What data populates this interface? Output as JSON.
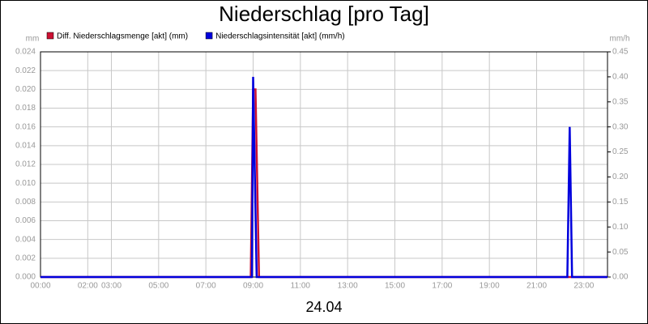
{
  "chart_data": {
    "type": "line",
    "title": "Niederschlag [pro Tag]",
    "ylabel": "mm",
    "y2label": "mm/h",
    "xlabel": "24.04",
    "xlim": [
      0,
      24
    ],
    "xticks": [
      {
        "value": 0,
        "label": "00:00"
      },
      {
        "value": 2,
        "label": "02:00"
      },
      {
        "value": 3,
        "label": "03:00"
      },
      {
        "value": 5,
        "label": "05:00"
      },
      {
        "value": 7,
        "label": "07:00"
      },
      {
        "value": 9,
        "label": "09:00"
      },
      {
        "value": 11,
        "label": "11:00"
      },
      {
        "value": 13,
        "label": "13:00"
      },
      {
        "value": 15,
        "label": "15:00"
      },
      {
        "value": 17,
        "label": "17:00"
      },
      {
        "value": 19,
        "label": "19:00"
      },
      {
        "value": 21,
        "label": "21:00"
      },
      {
        "value": 23,
        "label": "23:00"
      }
    ],
    "ylim": [
      0,
      0.024
    ],
    "yticks": [
      {
        "value": 0,
        "label": "0.000"
      },
      {
        "value": 0.002,
        "label": "0.002"
      },
      {
        "value": 0.004,
        "label": "0.004"
      },
      {
        "value": 0.006,
        "label": "0.006"
      },
      {
        "value": 0.008,
        "label": "0.008"
      },
      {
        "value": 0.01,
        "label": "0.010"
      },
      {
        "value": 0.012,
        "label": "0.012"
      },
      {
        "value": 0.014,
        "label": "0.014"
      },
      {
        "value": 0.016,
        "label": "0.016"
      },
      {
        "value": 0.018,
        "label": "0.018"
      },
      {
        "value": 0.02,
        "label": "0.020"
      },
      {
        "value": 0.022,
        "label": "0.022"
      },
      {
        "value": 0.024,
        "label": "0.024"
      }
    ],
    "y2lim": [
      0,
      0.45
    ],
    "y2ticks": [
      {
        "value": 0,
        "label": "0.00"
      },
      0.05,
      {
        "value": 0.1,
        "label": "0.10"
      },
      0.15,
      {
        "value": 0.2,
        "label": "0.20"
      },
      0.25,
      {
        "value": 0.3,
        "label": "0.30"
      },
      0.35,
      {
        "value": 0.4,
        "label": "0.40"
      },
      0.45
    ],
    "grid": true,
    "series": [
      {
        "name": "Diff. Niederschlagsmenge [akt] (mm)",
        "color": "#cc1133",
        "axis": "y",
        "x": [
          0,
          8.9,
          9.0,
          9.1,
          9.25,
          24
        ],
        "values": [
          0,
          0,
          0.02,
          0.02,
          0,
          0
        ]
      },
      {
        "name": "Niederschlagsintensität [akt] (mm/h)",
        "color": "#0000dd",
        "axis": "y2",
        "x": [
          0,
          8.95,
          9.0,
          9.15,
          22.3,
          22.4,
          22.5,
          24
        ],
        "values": [
          0,
          0,
          0.4,
          0,
          0,
          0.3,
          0,
          0
        ]
      }
    ]
  }
}
